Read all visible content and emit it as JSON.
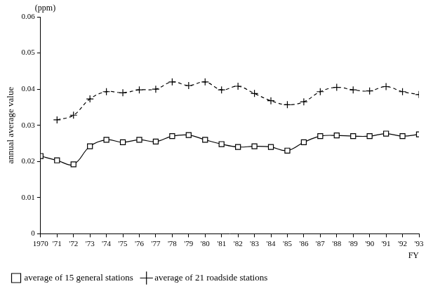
{
  "chart_data": {
    "type": "line",
    "y_label": "annual average value",
    "x_label": "FY",
    "annotations": [
      "(ppm)"
    ],
    "categories": [
      "1970",
      "'71",
      "'72",
      "'73",
      "'74",
      "'75",
      "'76",
      "'77",
      "'78",
      "'79",
      "'80",
      "'81",
      "'82",
      "'83",
      "'84",
      "'85",
      "'86",
      "'87",
      "'88",
      "'89",
      "'90",
      "'91",
      "'92",
      "'93"
    ],
    "series": [
      {
        "name": "average of 15 general stations",
        "color": "#000000",
        "marker": "square",
        "line_style": "solid",
        "values": [
          0.0215,
          0.0203,
          0.0192,
          0.0242,
          0.026,
          0.0253,
          0.026,
          0.0255,
          0.027,
          0.0273,
          0.026,
          0.0248,
          0.024,
          0.0242,
          0.024,
          0.023,
          0.0253,
          0.027,
          0.0272,
          0.027,
          0.027,
          0.0277,
          0.027,
          0.0275
        ]
      },
      {
        "name": "average of 21 roadside stations",
        "color": "#000000",
        "marker": "cross",
        "line_style": "dashed",
        "values": [
          null,
          0.0315,
          0.0328,
          0.0373,
          0.0393,
          0.039,
          0.0398,
          0.04,
          0.042,
          0.041,
          0.042,
          0.0398,
          0.0408,
          0.0388,
          0.0368,
          0.0357,
          0.0365,
          0.0393,
          0.0405,
          0.0398,
          0.0395,
          0.0407,
          0.0393,
          0.0385
        ]
      }
    ],
    "ylim": [
      0,
      0.06
    ],
    "yticks": [
      0,
      0.01,
      0.02,
      0.03,
      0.04,
      0.05,
      0.06
    ],
    "grid": false,
    "legend": "bottom"
  }
}
